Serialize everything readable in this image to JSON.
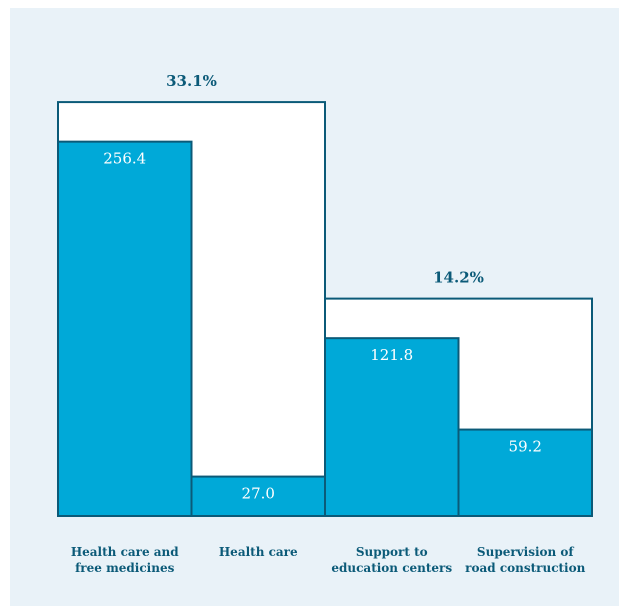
{
  "chart_data": {
    "type": "bar",
    "categories": [
      "Health care and\nfree medicines",
      "Health care",
      "Support to\neducation centers",
      "Supervision of\nroad construction"
    ],
    "values": [
      256.4,
      27.0,
      121.8,
      59.2
    ],
    "value_labels": [
      "256.4",
      "27.0",
      "121.8",
      "59.2"
    ],
    "brackets": [
      {
        "label": "33.1%",
        "from": 0,
        "to": 1,
        "level": 283.5
      },
      {
        "label": "14.2%",
        "from": 2,
        "to": 3,
        "level": 148.9
      }
    ],
    "ylim": [
      0,
      300
    ],
    "title": "",
    "xlabel": "",
    "ylabel": "",
    "grid": false,
    "legend": "none",
    "colors": {
      "bar_fill": "#00a9d8",
      "bar_stroke": "#0b5a78",
      "value_label": "#ffffff",
      "bracket_label": "#0b5a78",
      "panel_background": "#e9f2f8"
    }
  }
}
